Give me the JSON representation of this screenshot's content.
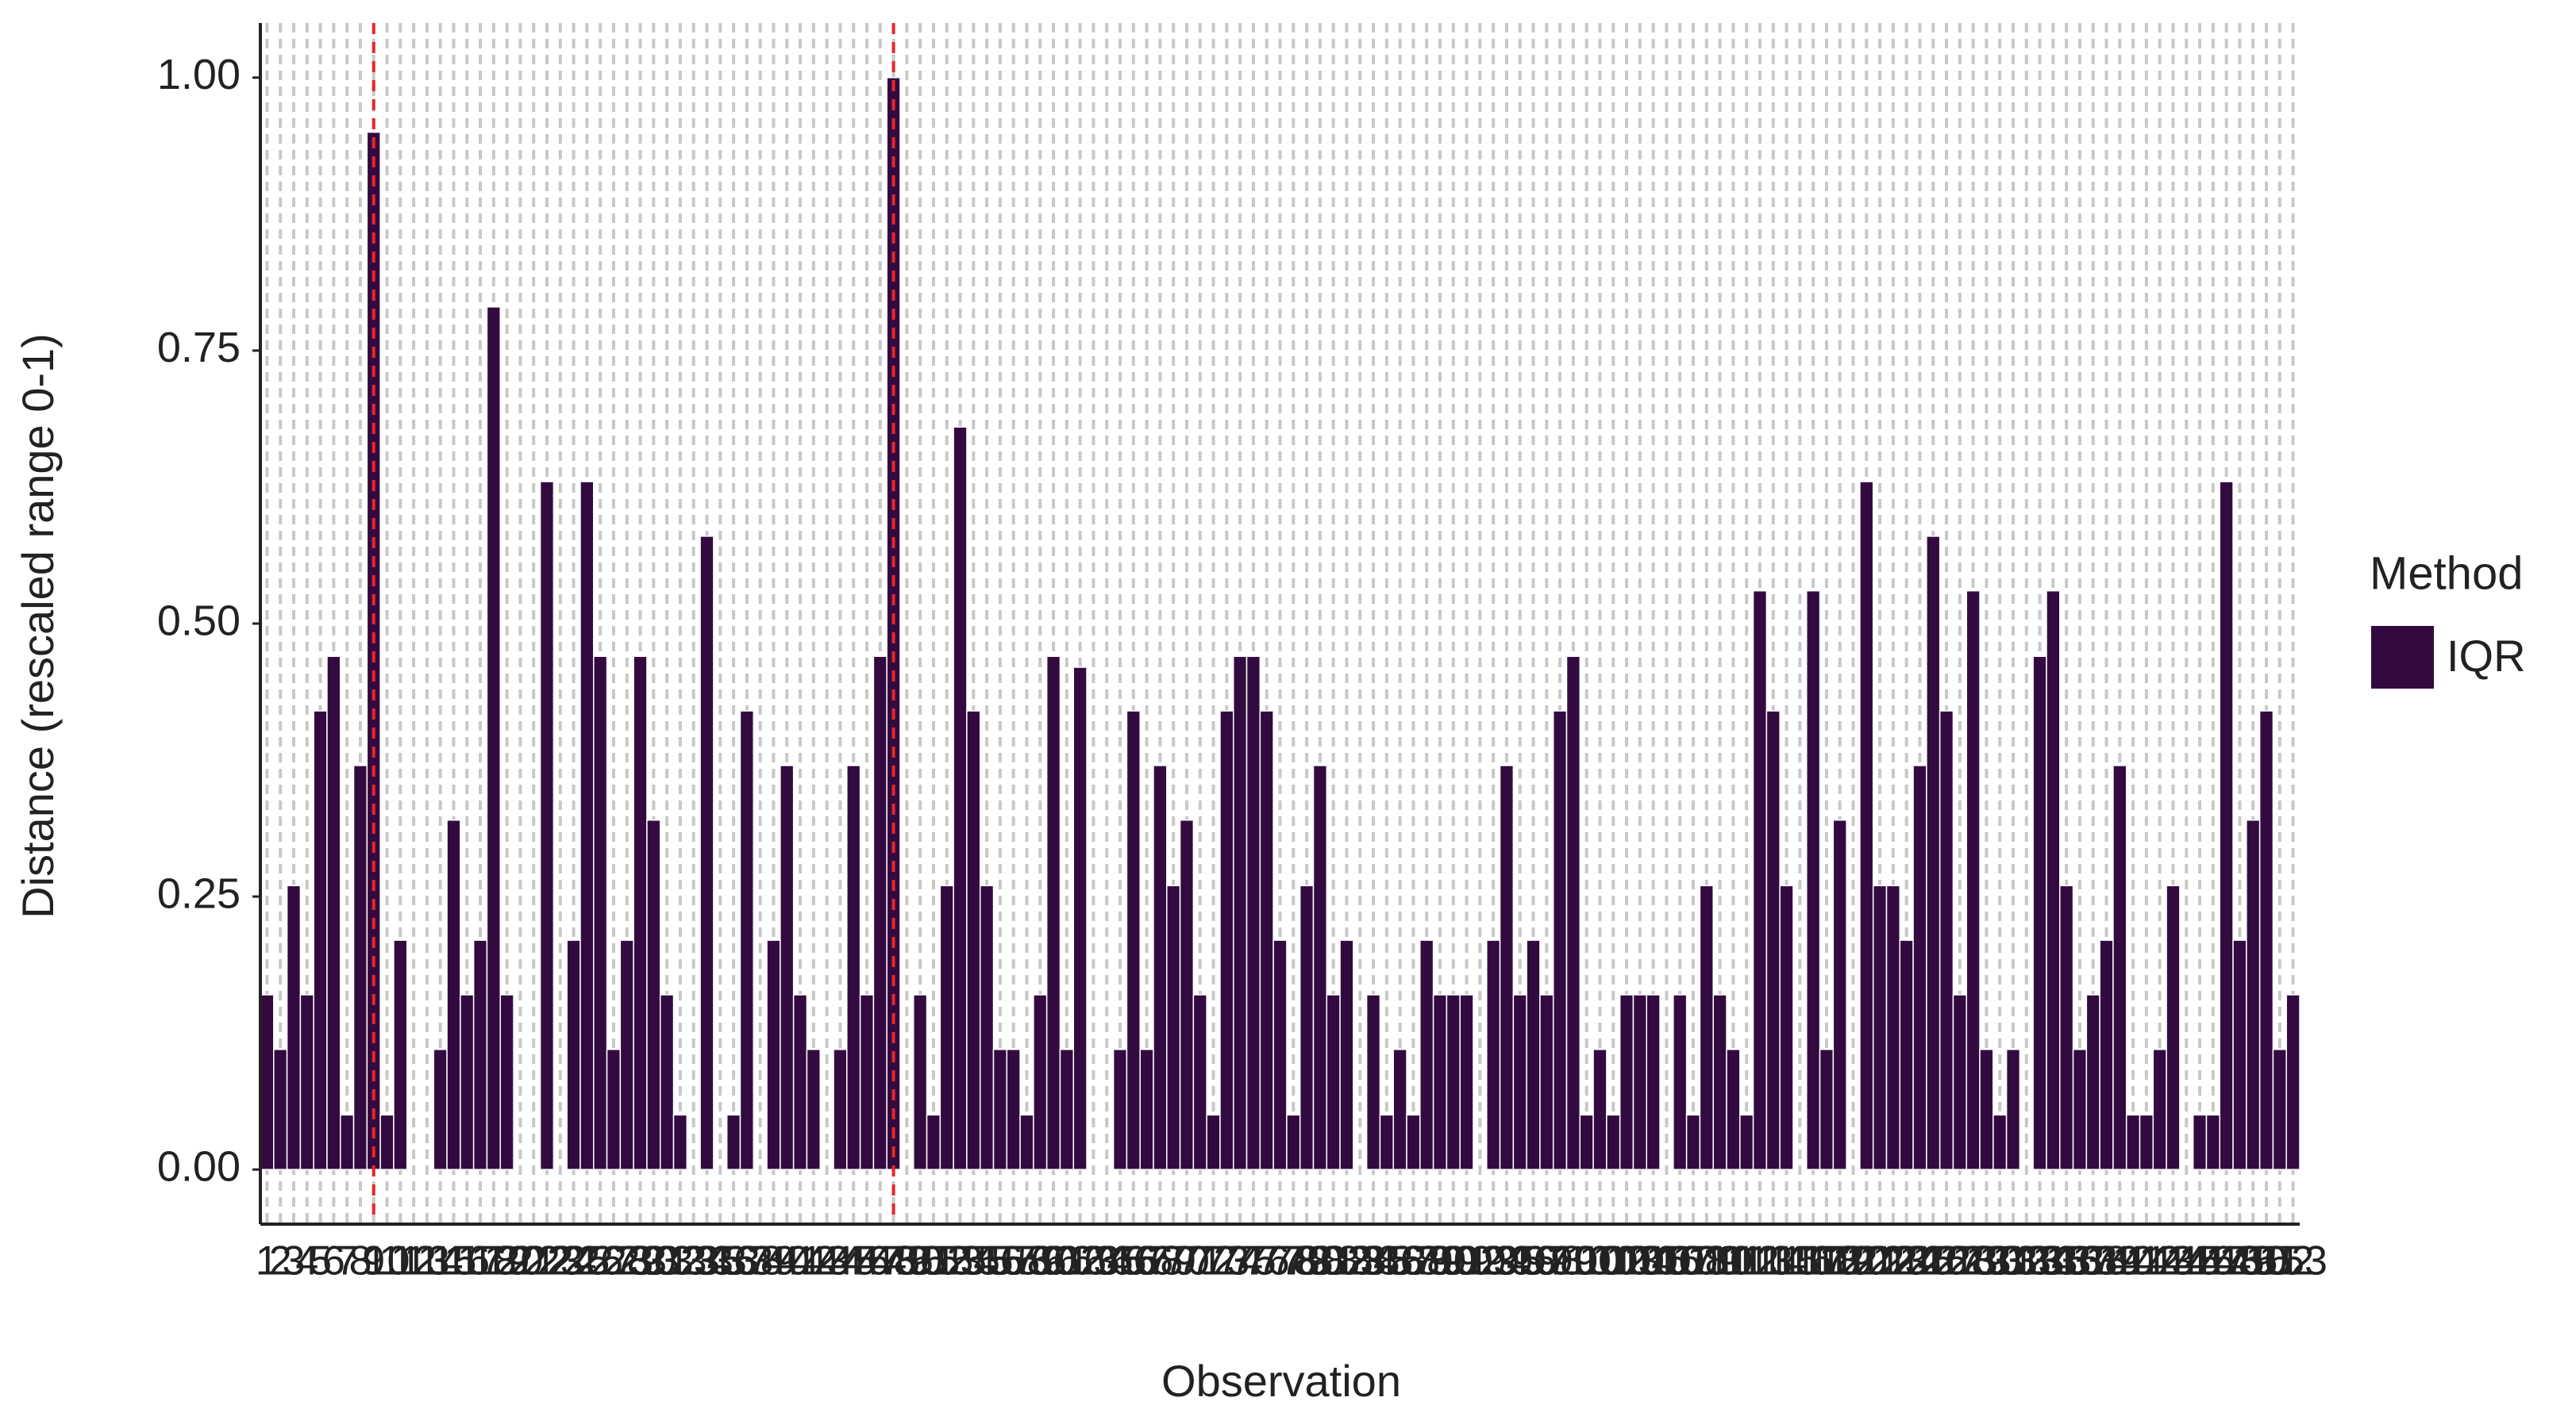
{
  "chart_data": {
    "type": "bar",
    "x_label": "Observation",
    "y_label": "Distance (rescaled range 0-1)",
    "legend_title": "Method",
    "categories": [
      1,
      2,
      3,
      4,
      5,
      6,
      7,
      8,
      9,
      10,
      11,
      12,
      13,
      14,
      15,
      16,
      17,
      18,
      19,
      20,
      21,
      22,
      23,
      24,
      25,
      26,
      27,
      28,
      29,
      30,
      31,
      32,
      33,
      34,
      35,
      36,
      37,
      38,
      39,
      40,
      41,
      42,
      43,
      44,
      45,
      46,
      47,
      48,
      49,
      50,
      51,
      52,
      53,
      54,
      55,
      56,
      57,
      58,
      59,
      60,
      61,
      62,
      63,
      64,
      65,
      66,
      67,
      68,
      69,
      70,
      71,
      72,
      73,
      74,
      75,
      76,
      77,
      78,
      79,
      80,
      81,
      82,
      83,
      84,
      85,
      86,
      87,
      88,
      89,
      90,
      91,
      92,
      93,
      94,
      95,
      96,
      97,
      98,
      99,
      100,
      101,
      102,
      103,
      104,
      105,
      106,
      107,
      108,
      109,
      110,
      111,
      112,
      113,
      114,
      115,
      116,
      117,
      118,
      119,
      120,
      121,
      122,
      123,
      124,
      125,
      126,
      127,
      128,
      129,
      130,
      131,
      132,
      133,
      134,
      135,
      136,
      137,
      138,
      139,
      140,
      141,
      142,
      143,
      144,
      145,
      146,
      147,
      148,
      149,
      150,
      151,
      152,
      153
    ],
    "series": [
      {
        "name": "IQR",
        "color": "#330a40",
        "values": [
          0.16,
          0.11,
          0.26,
          0.16,
          0.42,
          0.47,
          0.05,
          0.37,
          0.95,
          0.05,
          0.21,
          0,
          0,
          0.11,
          0.32,
          0.16,
          0.21,
          0.79,
          0.16,
          0,
          0,
          0.63,
          0,
          0.21,
          0.63,
          0.47,
          0.11,
          0.21,
          0.47,
          0.32,
          0.16,
          0.05,
          0,
          0.58,
          0,
          0.05,
          0.42,
          0,
          0.21,
          0.37,
          0.16,
          0.11,
          0,
          0.11,
          0.37,
          0.16,
          0.47,
          1.0,
          0,
          0.16,
          0.05,
          0.26,
          0.68,
          0.42,
          0.26,
          0.11,
          0.11,
          0.05,
          0.16,
          0.47,
          0.11,
          0.46,
          0,
          0,
          0.11,
          0.42,
          0.11,
          0.37,
          0.26,
          0.32,
          0.16,
          0.05,
          0.42,
          0.47,
          0.47,
          0.42,
          0.21,
          0.05,
          0.26,
          0.37,
          0.16,
          0.21,
          0,
          0.16,
          0.05,
          0.11,
          0.05,
          0.21,
          0.16,
          0.16,
          0.16,
          0,
          0.21,
          0.37,
          0.16,
          0.21,
          0.16,
          0.42,
          0.47,
          0.05,
          0.11,
          0.05,
          0.16,
          0.16,
          0.16,
          0,
          0.16,
          0.05,
          0.26,
          0.16,
          0.11,
          0.05,
          0.53,
          0.42,
          0.26,
          0,
          0.53,
          0.11,
          0.32,
          0,
          0.63,
          0.26,
          0.26,
          0.21,
          0.37,
          0.58,
          0.42,
          0.16,
          0.53,
          0.11,
          0.05,
          0.11,
          0,
          0.47,
          0.53,
          0.26,
          0.11,
          0.16,
          0.21,
          0.37,
          0.05,
          0.05,
          0.11,
          0.26,
          0,
          0.05,
          0.05,
          0.63,
          0.21,
          0.32,
          0.42,
          0.11,
          0.16
        ]
      }
    ],
    "ylim": [
      -0.05,
      1.05
    ],
    "yticks": [
      {
        "value": 0,
        "label": "0.00"
      },
      {
        "value": 0.25,
        "label": "0.25"
      },
      {
        "value": 0.5,
        "label": "0.50"
      },
      {
        "value": 0.75,
        "label": "0.75"
      },
      {
        "value": 1,
        "label": "1.00"
      }
    ],
    "grid": true,
    "highlight": {
      "categories": [
        9,
        48
      ],
      "color": "#e8262a"
    }
  }
}
